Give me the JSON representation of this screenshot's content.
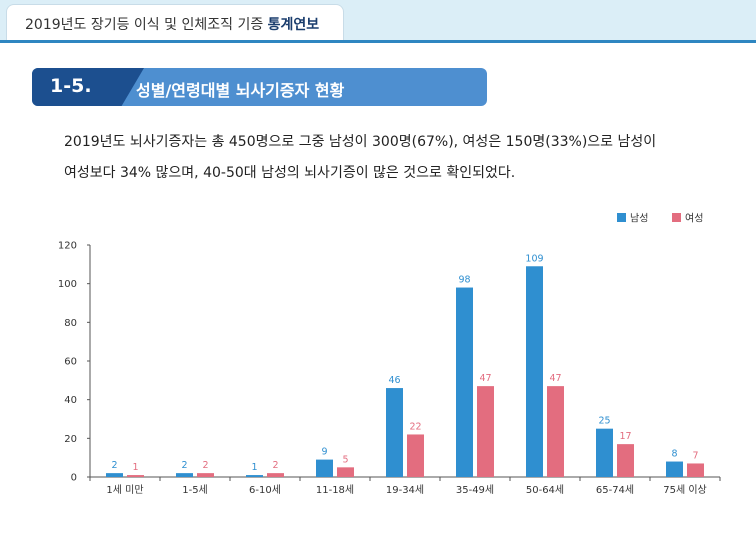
{
  "header": {
    "title_prefix": "2019년도 장기등 이식 및 인체조직 기증",
    "title_bold": "통계연보"
  },
  "section": {
    "number": "1-5.",
    "title": "성별/연령대별 뇌사기증자 현황"
  },
  "description": {
    "line1": "2019년도 뇌사기증자는 총 450명으로 그중 남성이 300명(67%), 여성은 150명(33%)으로 남성이",
    "line2": "여성보다 34% 많으며, 40-50대 남성의 뇌사기증이 많은 것으로 확인되었다."
  },
  "colors": {
    "male": "#2f8fd0",
    "female": "#e36d7f"
  },
  "chart_data": {
    "type": "bar",
    "categories": [
      "1세 미만",
      "1-5세",
      "6-10세",
      "11-18세",
      "19-34세",
      "35-49세",
      "50-64세",
      "65-74세",
      "75세 이상"
    ],
    "series": [
      {
        "name": "남성",
        "values": [
          2,
          2,
          1,
          9,
          46,
          98,
          109,
          25,
          8
        ]
      },
      {
        "name": "여성",
        "values": [
          1,
          2,
          2,
          5,
          22,
          47,
          47,
          17,
          7
        ]
      }
    ],
    "ylim": [
      0,
      120
    ],
    "yticks": [
      0,
      20,
      40,
      60,
      80,
      100,
      120
    ],
    "legend": "top-right",
    "grid": false
  }
}
